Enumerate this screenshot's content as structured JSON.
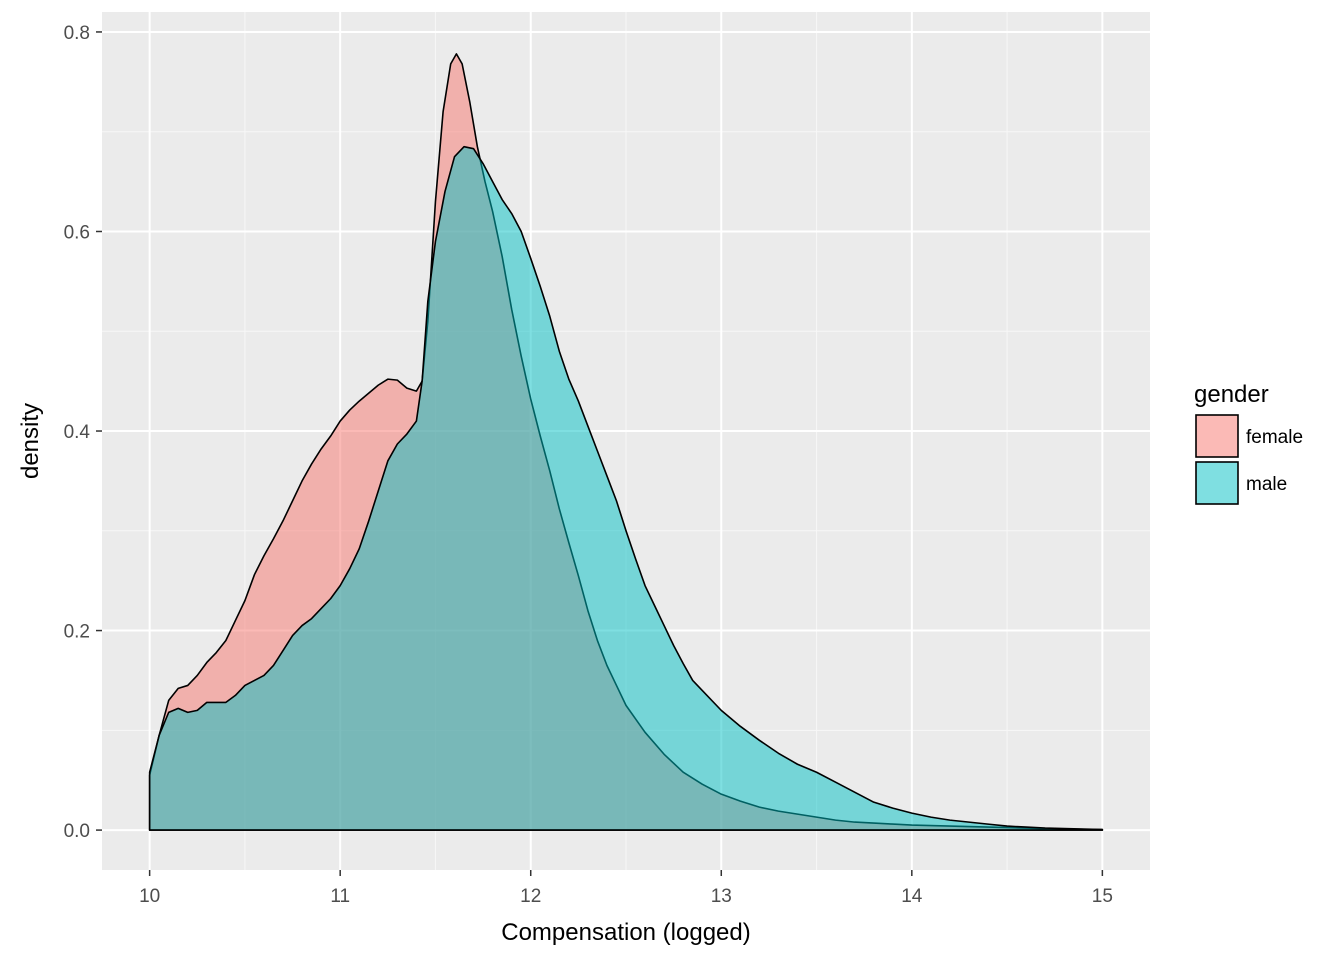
{
  "chart_data": {
    "type": "area",
    "xlabel": "Compensation (logged)",
    "ylabel": "density",
    "xlim": [
      9.75,
      15.25
    ],
    "ylim": [
      -0.04,
      0.82
    ],
    "xticks": [
      10,
      11,
      12,
      13,
      14,
      15
    ],
    "xtick_labels": [
      "10",
      "11",
      "12",
      "13",
      "14",
      "15"
    ],
    "yticks": [
      0.0,
      0.2,
      0.4,
      0.6,
      0.8
    ],
    "ytick_labels": [
      "0.0",
      "0.2",
      "0.4",
      "0.6",
      "0.8"
    ],
    "grid": true,
    "legend": {
      "title": "gender",
      "position": "right"
    },
    "series": [
      {
        "name": "female",
        "color": "#F8766D",
        "points": [
          [
            10.0,
            0.055
          ],
          [
            10.05,
            0.095
          ],
          [
            10.1,
            0.13
          ],
          [
            10.15,
            0.142
          ],
          [
            10.2,
            0.145
          ],
          [
            10.25,
            0.155
          ],
          [
            10.3,
            0.168
          ],
          [
            10.35,
            0.178
          ],
          [
            10.4,
            0.19
          ],
          [
            10.45,
            0.21
          ],
          [
            10.5,
            0.23
          ],
          [
            10.55,
            0.256
          ],
          [
            10.6,
            0.275
          ],
          [
            10.65,
            0.292
          ],
          [
            10.7,
            0.31
          ],
          [
            10.75,
            0.33
          ],
          [
            10.8,
            0.35
          ],
          [
            10.85,
            0.367
          ],
          [
            10.9,
            0.382
          ],
          [
            10.95,
            0.395
          ],
          [
            11.0,
            0.41
          ],
          [
            11.05,
            0.421
          ],
          [
            11.1,
            0.43
          ],
          [
            11.15,
            0.438
          ],
          [
            11.2,
            0.446
          ],
          [
            11.25,
            0.452
          ],
          [
            11.3,
            0.451
          ],
          [
            11.35,
            0.443
          ],
          [
            11.4,
            0.44
          ],
          [
            11.43,
            0.45
          ],
          [
            11.46,
            0.51
          ],
          [
            11.5,
            0.63
          ],
          [
            11.54,
            0.72
          ],
          [
            11.58,
            0.768
          ],
          [
            11.61,
            0.778
          ],
          [
            11.64,
            0.768
          ],
          [
            11.68,
            0.73
          ],
          [
            11.72,
            0.685
          ],
          [
            11.76,
            0.65
          ],
          [
            11.8,
            0.62
          ],
          [
            11.85,
            0.575
          ],
          [
            11.9,
            0.522
          ],
          [
            11.95,
            0.475
          ],
          [
            12.0,
            0.432
          ],
          [
            12.05,
            0.395
          ],
          [
            12.1,
            0.36
          ],
          [
            12.15,
            0.322
          ],
          [
            12.2,
            0.288
          ],
          [
            12.25,
            0.255
          ],
          [
            12.3,
            0.22
          ],
          [
            12.35,
            0.19
          ],
          [
            12.4,
            0.165
          ],
          [
            12.45,
            0.145
          ],
          [
            12.5,
            0.125
          ],
          [
            12.6,
            0.098
          ],
          [
            12.7,
            0.076
          ],
          [
            12.8,
            0.058
          ],
          [
            12.9,
            0.046
          ],
          [
            13.0,
            0.036
          ],
          [
            13.1,
            0.029
          ],
          [
            13.2,
            0.023
          ],
          [
            13.3,
            0.019
          ],
          [
            13.4,
            0.016
          ],
          [
            13.5,
            0.013
          ],
          [
            13.6,
            0.01
          ],
          [
            13.7,
            0.008
          ],
          [
            13.8,
            0.007
          ],
          [
            13.9,
            0.006
          ],
          [
            14.0,
            0.005
          ],
          [
            14.2,
            0.004
          ],
          [
            14.4,
            0.003
          ],
          [
            14.6,
            0.002
          ],
          [
            14.8,
            0.001
          ],
          [
            15.0,
            0.0005
          ]
        ]
      },
      {
        "name": "male",
        "color": "#00BFC4",
        "points": [
          [
            10.0,
            0.058
          ],
          [
            10.05,
            0.095
          ],
          [
            10.1,
            0.118
          ],
          [
            10.15,
            0.122
          ],
          [
            10.2,
            0.118
          ],
          [
            10.25,
            0.12
          ],
          [
            10.3,
            0.128
          ],
          [
            10.35,
            0.128
          ],
          [
            10.4,
            0.128
          ],
          [
            10.45,
            0.135
          ],
          [
            10.5,
            0.145
          ],
          [
            10.55,
            0.15
          ],
          [
            10.6,
            0.155
          ],
          [
            10.65,
            0.165
          ],
          [
            10.7,
            0.18
          ],
          [
            10.75,
            0.195
          ],
          [
            10.8,
            0.205
          ],
          [
            10.85,
            0.212
          ],
          [
            10.9,
            0.222
          ],
          [
            10.95,
            0.232
          ],
          [
            11.0,
            0.245
          ],
          [
            11.05,
            0.262
          ],
          [
            11.1,
            0.282
          ],
          [
            11.15,
            0.31
          ],
          [
            11.2,
            0.34
          ],
          [
            11.25,
            0.37
          ],
          [
            11.3,
            0.387
          ],
          [
            11.35,
            0.397
          ],
          [
            11.4,
            0.41
          ],
          [
            11.43,
            0.45
          ],
          [
            11.46,
            0.53
          ],
          [
            11.5,
            0.59
          ],
          [
            11.55,
            0.64
          ],
          [
            11.6,
            0.675
          ],
          [
            11.65,
            0.685
          ],
          [
            11.7,
            0.683
          ],
          [
            11.75,
            0.668
          ],
          [
            11.8,
            0.65
          ],
          [
            11.85,
            0.632
          ],
          [
            11.9,
            0.618
          ],
          [
            11.95,
            0.6
          ],
          [
            12.0,
            0.573
          ],
          [
            12.05,
            0.545
          ],
          [
            12.1,
            0.515
          ],
          [
            12.15,
            0.48
          ],
          [
            12.2,
            0.452
          ],
          [
            12.25,
            0.43
          ],
          [
            12.3,
            0.405
          ],
          [
            12.35,
            0.38
          ],
          [
            12.4,
            0.355
          ],
          [
            12.45,
            0.33
          ],
          [
            12.5,
            0.3
          ],
          [
            12.55,
            0.272
          ],
          [
            12.6,
            0.245
          ],
          [
            12.65,
            0.225
          ],
          [
            12.7,
            0.205
          ],
          [
            12.75,
            0.185
          ],
          [
            12.8,
            0.167
          ],
          [
            12.85,
            0.15
          ],
          [
            12.9,
            0.14
          ],
          [
            13.0,
            0.12
          ],
          [
            13.1,
            0.104
          ],
          [
            13.2,
            0.09
          ],
          [
            13.3,
            0.077
          ],
          [
            13.4,
            0.066
          ],
          [
            13.5,
            0.058
          ],
          [
            13.6,
            0.048
          ],
          [
            13.7,
            0.038
          ],
          [
            13.8,
            0.028
          ],
          [
            13.9,
            0.022
          ],
          [
            14.0,
            0.017
          ],
          [
            14.1,
            0.013
          ],
          [
            14.2,
            0.01
          ],
          [
            14.3,
            0.008
          ],
          [
            14.4,
            0.006
          ],
          [
            14.5,
            0.004
          ],
          [
            14.6,
            0.003
          ],
          [
            14.7,
            0.002
          ],
          [
            14.8,
            0.0015
          ],
          [
            15.0,
            0.0005
          ]
        ]
      }
    ]
  }
}
